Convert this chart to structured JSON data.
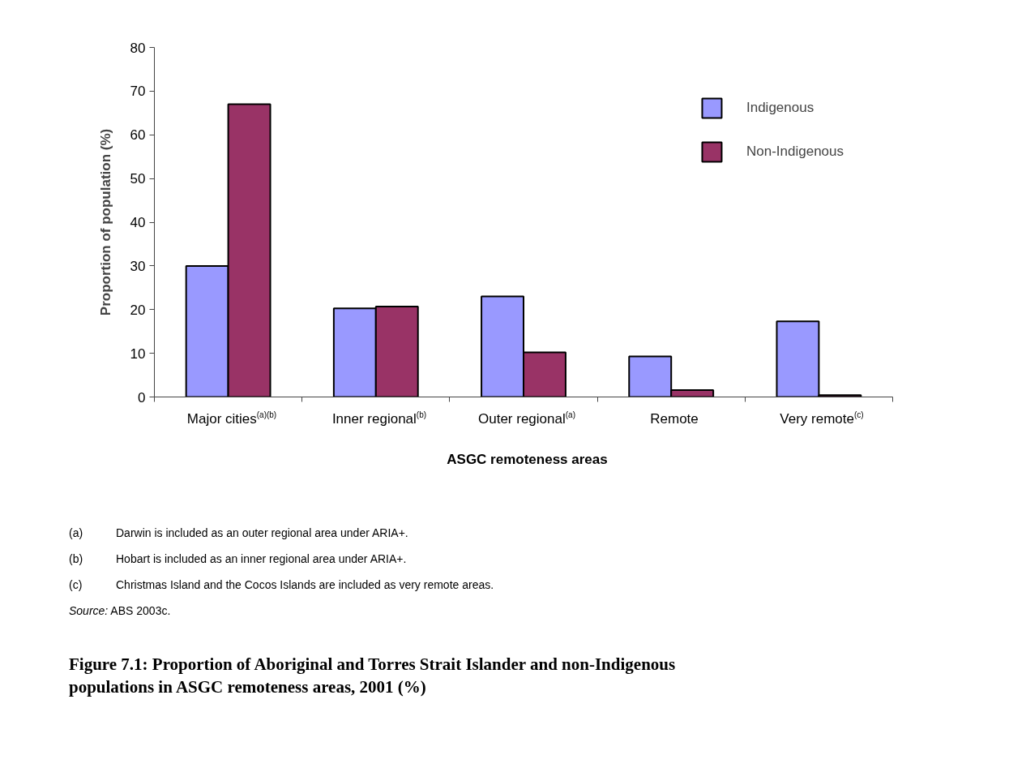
{
  "chart_data": {
    "type": "bar",
    "title": "Figure 7.1: Proportion of Aboriginal and Torres Strait Islander and non-Indigenous populations in ASGC remoteness areas, 2001 (%)",
    "xlabel": "ASGC remoteness areas",
    "ylabel": "Proportion of population (%)",
    "categories": [
      "Major cities$^{(a)(b)}$",
      "Inner regional$^{(b)}$",
      "Outer regional$^{(a)}$",
      "Remote",
      "Very remote$^{(c)}$"
    ],
    "series": [
      {
        "name": "Indigenous",
        "color": "#9999ff",
        "values": [
          30,
          20.3,
          23,
          9.3,
          17.3
        ]
      },
      {
        "name": "Non-Indigenous",
        "color": "#993366",
        "values": [
          67,
          20.7,
          10.2,
          1.6,
          0.4
        ]
      }
    ],
    "ylim": [
      0,
      80
    ],
    "yticks": [
      0,
      10,
      20,
      30,
      40,
      50,
      60,
      70,
      80
    ],
    "grid": false,
    "legend": "top right",
    "annotations": [
      "(a) Darwin is included as an outer regional area under ARIA+.",
      "(b) Hobart is included as an inner regional area under ARIA+.",
      "(c) Christmas Island and the Cocos Islands are included as very remote areas.",
      "Source: ABS 2003c."
    ]
  }
}
